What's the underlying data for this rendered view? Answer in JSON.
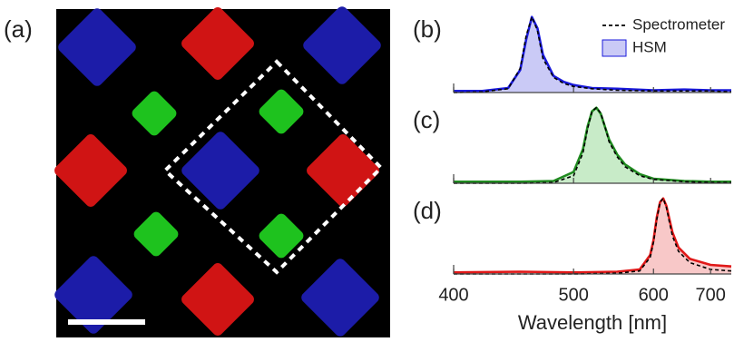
{
  "image_panel": {
    "label": "(a)"
  },
  "chart_data": [
    {
      "type": "line",
      "label": "(b)",
      "xscale": "reciprocal",
      "xlim": [
        400,
        745
      ],
      "xticks": [
        400,
        500,
        600,
        700
      ],
      "ylim": [
        0,
        1.08
      ],
      "x": [
        400,
        420,
        440,
        450,
        455,
        460,
        465,
        470,
        480,
        490,
        500,
        520,
        550,
        600,
        650,
        700,
        745
      ],
      "series": [
        {
          "name": "Spectrometer",
          "color": "#000000",
          "style": "dashed",
          "values": [
            0,
            0.01,
            0.05,
            0.32,
            0.75,
            1.0,
            0.82,
            0.45,
            0.2,
            0.12,
            0.08,
            0.05,
            0.03,
            0.02,
            0.02,
            0.02,
            0.01
          ]
        },
        {
          "name": "HSM",
          "color": "#1a1adb",
          "fill": "#cacaf6",
          "style": "solid",
          "values": [
            0.02,
            0.02,
            0.06,
            0.3,
            0.7,
            1.0,
            0.85,
            0.5,
            0.22,
            0.14,
            0.1,
            0.06,
            0.05,
            0.03,
            0.04,
            0.03,
            0.03
          ]
        }
      ]
    },
    {
      "type": "line",
      "label": "(c)",
      "xscale": "reciprocal",
      "xlim": [
        400,
        745
      ],
      "xticks": [
        400,
        500,
        600,
        700
      ],
      "ylim": [
        0,
        1.08
      ],
      "x": [
        400,
        450,
        480,
        500,
        510,
        515,
        520,
        525,
        530,
        535,
        540,
        550,
        560,
        580,
        600,
        650,
        700,
        745
      ],
      "series": [
        {
          "color": "#000000",
          "style": "dashed",
          "values": [
            0,
            0,
            0.01,
            0.1,
            0.4,
            0.72,
            0.95,
            1.0,
            0.93,
            0.75,
            0.55,
            0.35,
            0.22,
            0.1,
            0.05,
            0.02,
            0.01,
            0.01
          ]
        },
        {
          "color": "#1f8a1f",
          "fill": "#c8ebc8",
          "style": "solid",
          "values": [
            0.02,
            0.02,
            0.03,
            0.15,
            0.45,
            0.75,
            0.95,
            1.0,
            0.92,
            0.75,
            0.58,
            0.38,
            0.25,
            0.12,
            0.06,
            0.03,
            0.02,
            0.02
          ]
        }
      ]
    },
    {
      "type": "line",
      "label": "(d)",
      "xscale": "reciprocal",
      "xlim": [
        400,
        745
      ],
      "xticks": [
        400,
        500,
        600,
        700
      ],
      "ylim": [
        0,
        1.08
      ],
      "xlabel": "Wavelength [nm]",
      "x": [
        400,
        450,
        500,
        550,
        580,
        595,
        600,
        605,
        610,
        615,
        620,
        625,
        630,
        640,
        660,
        700,
        745
      ],
      "series": [
        {
          "color": "#000000",
          "style": "dashed",
          "values": [
            0,
            0,
            0,
            0.01,
            0.04,
            0.22,
            0.42,
            0.72,
            0.95,
            1.0,
            0.88,
            0.68,
            0.5,
            0.3,
            0.15,
            0.06,
            0.04
          ]
        },
        {
          "color": "#e01818",
          "fill": "#f8c8c8",
          "style": "solid",
          "values": [
            0.02,
            0.03,
            0.02,
            0.03,
            0.06,
            0.25,
            0.45,
            0.75,
            0.95,
            1.0,
            0.9,
            0.72,
            0.55,
            0.35,
            0.2,
            0.12,
            0.1
          ]
        }
      ]
    }
  ]
}
